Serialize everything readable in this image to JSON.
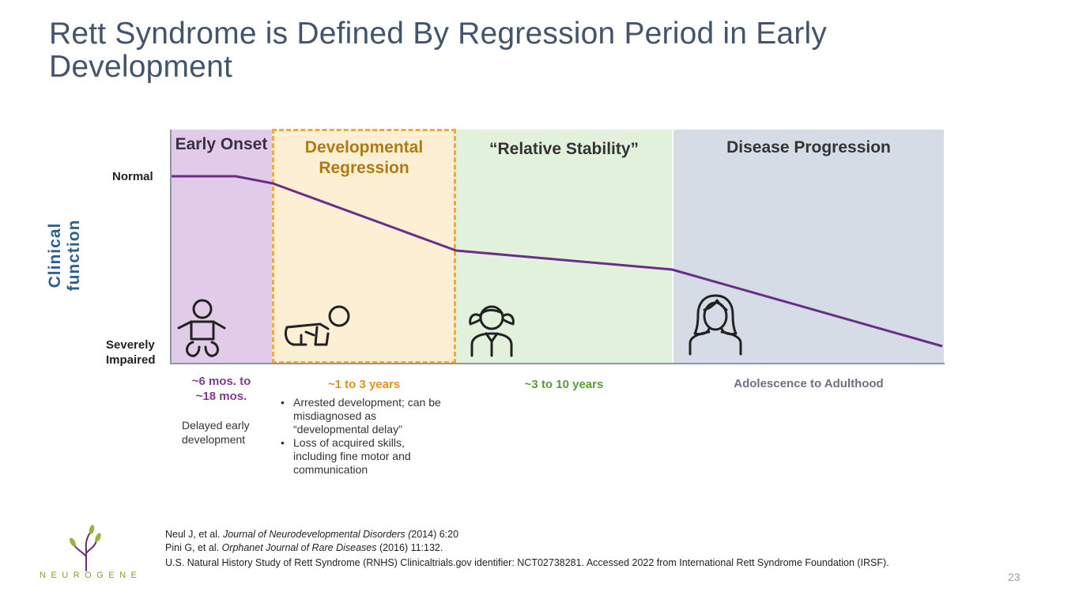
{
  "title": "Rett Syndrome is Defined By Regression Period in Early Development",
  "y_axis_label": "Clinical function",
  "y_top_label": "Normal",
  "y_bottom_label": "Severely Impaired",
  "phases": [
    {
      "title": "Early Onset",
      "time": "~6 mos. to ~18 mos.",
      "icon": "baby-icon"
    },
    {
      "title": "Developmental Regression",
      "time": "~1 to 3 years",
      "icon": "crawling-baby-icon"
    },
    {
      "title": "“Relative Stability”",
      "time": "~3 to 10 years",
      "icon": "child-girl-icon"
    },
    {
      "title": "Disease Progression",
      "time": "Adolescence to Adulthood",
      "icon": "adult-woman-icon"
    }
  ],
  "descriptions": {
    "early": "Delayed early development",
    "regression": [
      "Arrested development; can be misdiagnosed as “developmental delay”",
      "Loss of acquired skills, including fine motor and communication"
    ]
  },
  "colors": {
    "early": "#e1cbe9",
    "regression": "#fdefd4",
    "stability": "#e2f1dc",
    "progression": "#d6dce6",
    "line": "#6b2d8a",
    "dash": "#f2a93b"
  },
  "references": [
    {
      "pre": "Neul J, et al. ",
      "journal": "Journal of Neurodevelopmental Disorders (",
      "post": "2014) 6:20"
    },
    {
      "pre": "Pini G, et al. ",
      "journal": "Orphanet Journal of Rare Diseases",
      "post": " (2016) 11:132."
    },
    {
      "text": "U.S. Natural History Study of Rett Syndrome (RNHS) Clinicaltrials.gov identifier: NCT02738281. Accessed 2022 from International Rett Syndrome Foundation (IRSF)."
    }
  ],
  "logo": "NEUROGENE",
  "page_number": "23"
}
